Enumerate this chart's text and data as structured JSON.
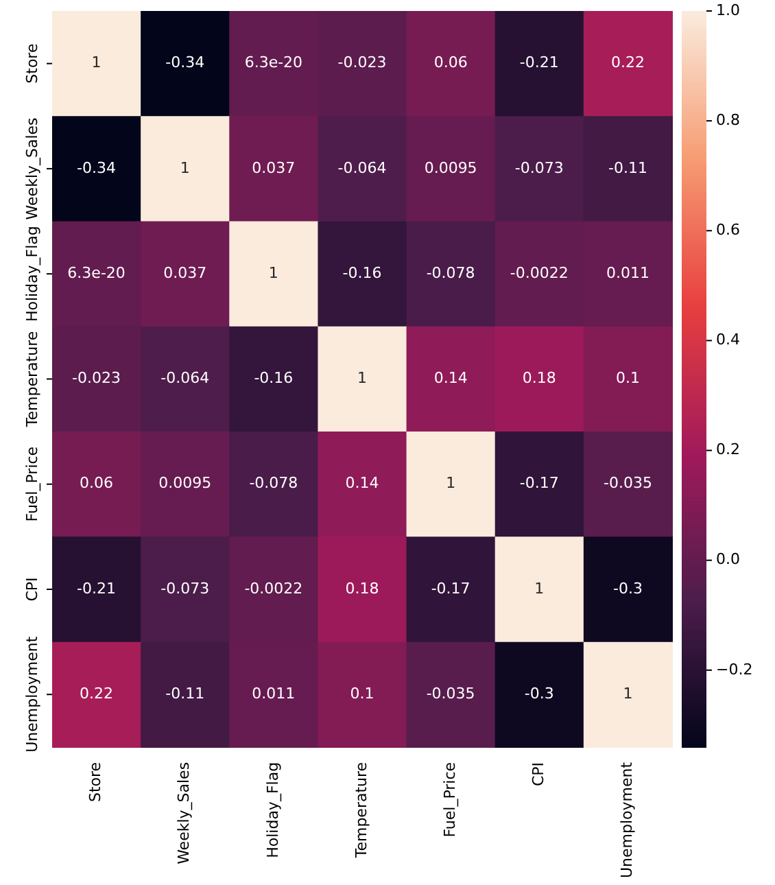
{
  "chart_data": {
    "type": "heatmap",
    "categories": [
      "Store",
      "Weekly_Sales",
      "Holiday_Flag",
      "Temperature",
      "Fuel_Price",
      "CPI",
      "Unemployment"
    ],
    "y_categories": [
      "Store",
      "Weekly_Sales",
      "Holiday_Flag",
      "Temperature",
      "Fuel_Price",
      "CPI",
      "Unemployment"
    ],
    "cells": [
      [
        1,
        -0.34,
        6.3e-20,
        -0.023,
        0.06,
        -0.21,
        0.22
      ],
      [
        -0.34,
        1,
        0.037,
        -0.064,
        0.0095,
        -0.073,
        -0.11
      ],
      [
        6.3e-20,
        0.037,
        1,
        -0.16,
        -0.078,
        -0.0022,
        0.011
      ],
      [
        -0.023,
        -0.064,
        -0.16,
        1,
        0.14,
        0.18,
        0.1
      ],
      [
        0.06,
        0.0095,
        -0.078,
        0.14,
        1,
        -0.17,
        -0.035
      ],
      [
        -0.21,
        -0.073,
        -0.0022,
        0.18,
        -0.17,
        1,
        -0.3
      ],
      [
        0.22,
        -0.11,
        0.011,
        0.1,
        -0.035,
        -0.3,
        1
      ]
    ],
    "data_labels": true,
    "clim": [
      -0.34,
      1
    ],
    "cticks": [
      {
        "value": -0.2,
        "label": "−0.2"
      },
      {
        "value": 0,
        "label": "0.0"
      },
      {
        "value": 0.2,
        "label": "0.2"
      },
      {
        "value": 0.4,
        "label": "0.4"
      },
      {
        "value": 0.6,
        "label": "0.6"
      },
      {
        "value": 0.8,
        "label": "0.8"
      },
      {
        "value": 1,
        "label": "1.0"
      }
    ]
  }
}
